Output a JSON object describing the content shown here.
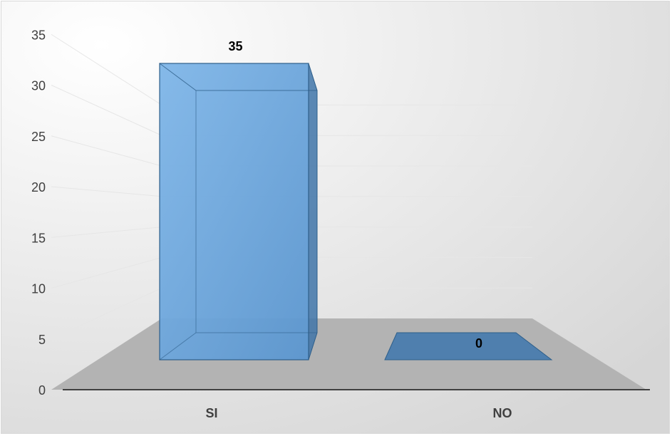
{
  "chart_data": {
    "type": "bar",
    "title": "",
    "xlabel": "",
    "ylabel": "",
    "categories": [
      "SI",
      "NO"
    ],
    "series": [
      {
        "values": [
          35,
          0
        ]
      }
    ],
    "data_labels": [
      "35",
      "0"
    ],
    "ylim": [
      0,
      35
    ],
    "yticks": [
      "0",
      "5",
      "10",
      "15",
      "20",
      "25",
      "30",
      "35"
    ],
    "grid": true,
    "legend": "none",
    "style": "3d-column",
    "colors": {
      "bar_face": "#6fa8dc",
      "bar_edge": "#2e5f8a",
      "floor": "#b3b3b3",
      "background_light": "#ffffff",
      "background_dark": "#d6d6d6",
      "tick_text": "#404040",
      "label_text": "#000000"
    }
  }
}
